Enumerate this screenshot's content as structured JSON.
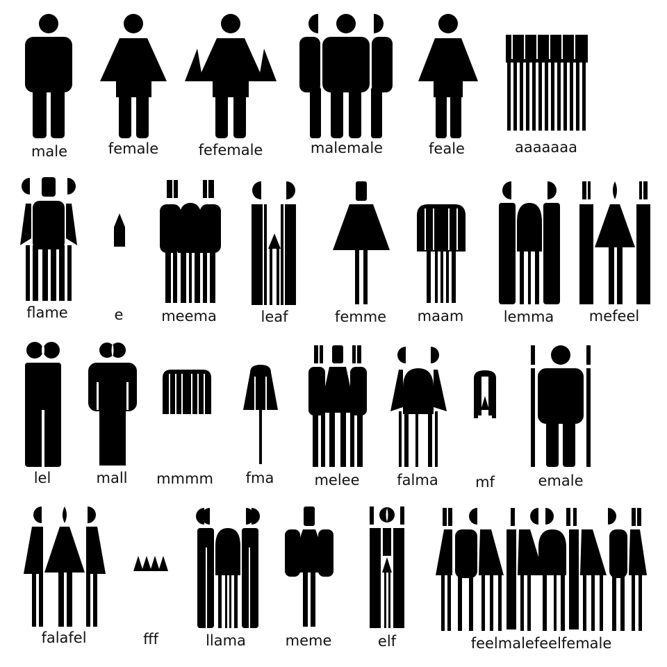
{
  "colors": {
    "ink": "#000000",
    "paper": "#ffffff",
    "text": "#111111"
  },
  "rows": [
    {
      "items": [
        {
          "word": "male"
        },
        {
          "word": "female"
        },
        {
          "word": "fefemale"
        },
        {
          "word": "malemale"
        },
        {
          "word": "feale"
        },
        {
          "word": "aaaaaaa"
        }
      ]
    },
    {
      "items": [
        {
          "word": "flame"
        },
        {
          "word": "e"
        },
        {
          "word": "meema"
        },
        {
          "word": "leaf"
        },
        {
          "word": "femme"
        },
        {
          "word": "maam"
        },
        {
          "word": "lemma"
        },
        {
          "word": "mefeel"
        }
      ]
    },
    {
      "items": [
        {
          "word": "lel"
        },
        {
          "word": "mall"
        },
        {
          "word": "mmmm"
        },
        {
          "word": "fma"
        },
        {
          "word": "melee"
        },
        {
          "word": "falma"
        },
        {
          "word": "mf"
        },
        {
          "word": "emale"
        }
      ]
    },
    {
      "items": [
        {
          "word": "falafel"
        },
        {
          "word": "fff"
        },
        {
          "word": "llama"
        },
        {
          "word": "meme"
        },
        {
          "word": "elf"
        },
        {
          "word": "feelmalefeelfemale"
        }
      ]
    }
  ]
}
